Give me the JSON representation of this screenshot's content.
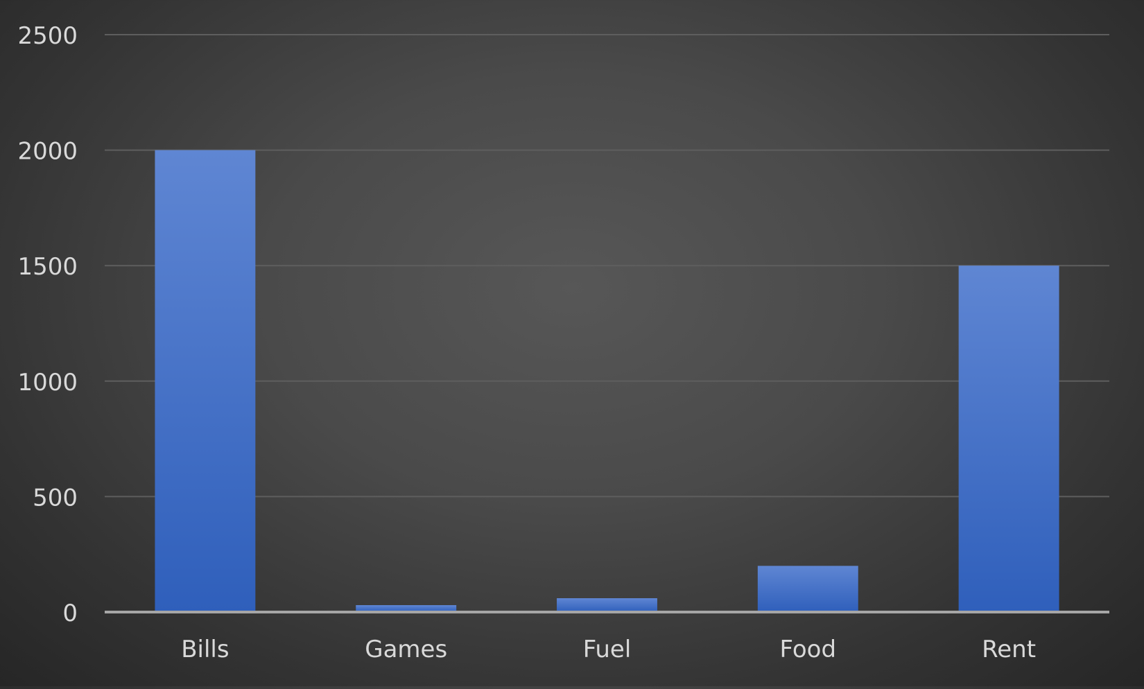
{
  "chart_data": {
    "type": "bar",
    "title": "",
    "xlabel": "",
    "ylabel": "",
    "categories": [
      "Bills",
      "Games",
      "Fuel",
      "Food",
      "Rent"
    ],
    "values": [
      2000,
      30,
      60,
      200,
      1500
    ],
    "ylim": [
      0,
      2500
    ],
    "yticks": [
      "0",
      "500",
      "1000",
      "1500",
      "2000",
      "2500"
    ],
    "grid": true,
    "legend": "none",
    "colors": {
      "bar_top": "#5f86d3",
      "bar_bottom": "#2f5fbb",
      "gridline": "#5e5e5e",
      "axis": "#a6a6a6",
      "text": "#d9d9d9"
    }
  }
}
